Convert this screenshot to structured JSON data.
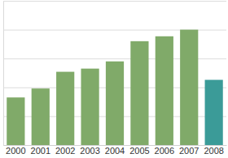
{
  "chart_data": {
    "type": "bar",
    "categories": [
      "2000",
      "2001",
      "2002",
      "2003",
      "2004",
      "2005",
      "2006",
      "2007",
      "2008"
    ],
    "values": [
      1.65,
      1.96,
      2.54,
      2.65,
      2.9,
      3.6,
      3.77,
      4.0,
      2.26
    ],
    "colors": [
      "#80aa69",
      "#80aa69",
      "#80aa69",
      "#80aa69",
      "#80aa69",
      "#80aa69",
      "#80aa69",
      "#80aa69",
      "#3b9b98"
    ],
    "ylim": [
      0,
      5
    ],
    "yticks": [
      0,
      1,
      2,
      3,
      4,
      5
    ],
    "grid": true,
    "tick_labels": "x"
  }
}
